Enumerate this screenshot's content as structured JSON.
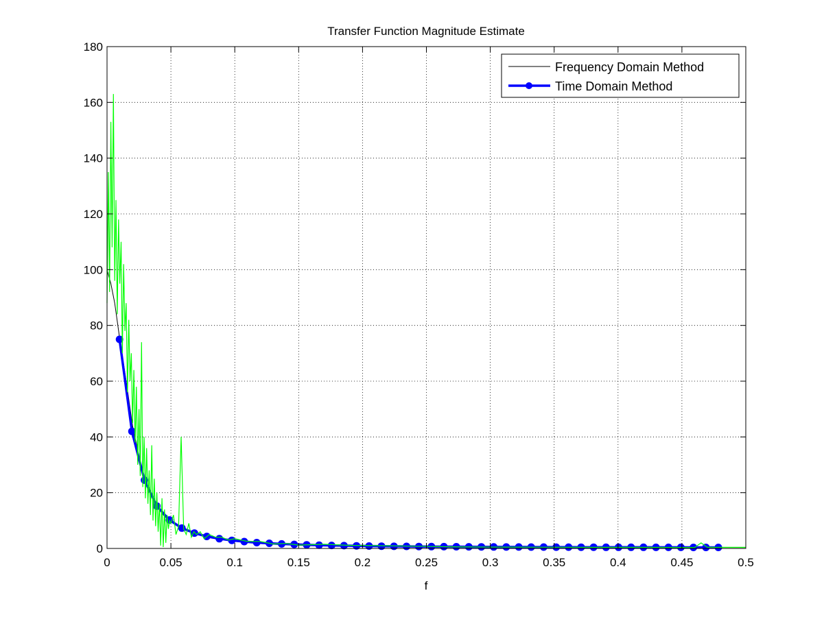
{
  "chart_data": {
    "type": "line",
    "title": "Transfer Function Magnitude Estimate",
    "xlabel": "f",
    "ylabel": "",
    "xlim": [
      0,
      0.5
    ],
    "ylim": [
      0,
      180
    ],
    "xticks": [
      0,
      0.05,
      0.1,
      0.15,
      0.2,
      0.25,
      0.3,
      0.35,
      0.4,
      0.45,
      0.5
    ],
    "xtick_labels": [
      "0",
      "0.05",
      "0.1",
      "0.15",
      "0.2",
      "0.25",
      "0.3",
      "0.35",
      "0.4",
      "0.45",
      "0.5"
    ],
    "yticks": [
      0,
      20,
      40,
      60,
      80,
      100,
      120,
      140,
      160,
      180
    ],
    "ytick_labels": [
      "0",
      "20",
      "40",
      "60",
      "80",
      "100",
      "120",
      "140",
      "160",
      "180"
    ],
    "grid": true,
    "legend_position": "top-right",
    "series": [
      {
        "name": "Frequency Domain Method",
        "color": "#000000",
        "style": "thin-line",
        "x": [
          0,
          0.003,
          0.006,
          0.01,
          0.015,
          0.02,
          0.025,
          0.03,
          0.035,
          0.04,
          0.045,
          0.05,
          0.06,
          0.07,
          0.08,
          0.09,
          0.1,
          0.12,
          0.14,
          0.16,
          0.18,
          0.2,
          0.25,
          0.3,
          0.35,
          0.4,
          0.45,
          0.5
        ],
        "y": [
          100,
          95,
          88,
          75,
          60,
          44,
          33,
          24,
          19,
          14.5,
          11.5,
          9.5,
          7,
          5.4,
          4.3,
          3.5,
          2.9,
          2.1,
          1.6,
          1.3,
          1.1,
          0.95,
          0.7,
          0.55,
          0.48,
          0.42,
          0.38,
          0.35
        ]
      },
      {
        "name": "Time Domain Method",
        "color": "#0000ff",
        "style": "thick-line-circle-markers",
        "x": [
          0.0098,
          0.0195,
          0.0293,
          0.039,
          0.0488,
          0.0586,
          0.0684,
          0.0781,
          0.0879,
          0.0977,
          0.1074,
          0.1172,
          0.127,
          0.1367,
          0.1465,
          0.1563,
          0.166,
          0.1758,
          0.1855,
          0.1953,
          0.2051,
          0.2148,
          0.2246,
          0.2344,
          0.2441,
          0.2539,
          0.2637,
          0.2734,
          0.2832,
          0.293,
          0.3027,
          0.3125,
          0.3223,
          0.332,
          0.3418,
          0.3516,
          0.3613,
          0.3711,
          0.3809,
          0.3906,
          0.4004,
          0.4102,
          0.4199,
          0.4297,
          0.4395,
          0.4492,
          0.459,
          0.4688,
          0.4785
        ],
        "y": [
          75,
          42,
          24.5,
          15.2,
          10.2,
          7.3,
          5.5,
          4.3,
          3.5,
          2.9,
          2.45,
          2.1,
          1.85,
          1.62,
          1.45,
          1.3,
          1.18,
          1.08,
          1.0,
          0.93,
          0.87,
          0.82,
          0.77,
          0.73,
          0.7,
          0.66,
          0.63,
          0.61,
          0.58,
          0.56,
          0.54,
          0.52,
          0.51,
          0.49,
          0.48,
          0.47,
          0.46,
          0.45,
          0.44,
          0.43,
          0.42,
          0.41,
          0.41,
          0.4,
          0.39,
          0.39,
          0.38,
          0.38,
          0.37
        ]
      },
      {
        "name": "",
        "color": "#00ff00",
        "style": "noisy-thin-line",
        "x": [
          0,
          0.001,
          0.002,
          0.003,
          0.004,
          0.005,
          0.006,
          0.007,
          0.008,
          0.009,
          0.01,
          0.011,
          0.012,
          0.013,
          0.014,
          0.015,
          0.016,
          0.017,
          0.018,
          0.019,
          0.02,
          0.021,
          0.022,
          0.023,
          0.024,
          0.025,
          0.026,
          0.027,
          0.028,
          0.029,
          0.03,
          0.031,
          0.032,
          0.033,
          0.034,
          0.035,
          0.036,
          0.037,
          0.038,
          0.039,
          0.04,
          0.041,
          0.042,
          0.043,
          0.044,
          0.045,
          0.046,
          0.047,
          0.048,
          0.049,
          0.05,
          0.052,
          0.054,
          0.056,
          0.058,
          0.06,
          0.062,
          0.064,
          0.066,
          0.068,
          0.07,
          0.073,
          0.076,
          0.08,
          0.085,
          0.09,
          0.095,
          0.1,
          0.11,
          0.12,
          0.13,
          0.14,
          0.15,
          0.17,
          0.19,
          0.21,
          0.24,
          0.27,
          0.3,
          0.34,
          0.38,
          0.42,
          0.46,
          0.465,
          0.47,
          0.5
        ],
        "y": [
          88,
          135,
          92,
          153,
          108,
          163,
          96,
          125,
          84,
          118,
          95,
          110,
          70,
          102,
          78,
          88,
          56,
          82,
          60,
          70,
          45,
          64,
          38,
          58,
          30,
          50,
          26,
          74,
          22,
          40,
          18,
          36,
          16,
          28,
          12,
          37,
          10,
          25,
          8,
          20,
          6,
          16,
          1,
          18,
          0.5,
          14,
          2,
          12,
          7,
          10,
          9,
          12,
          5,
          8,
          40,
          7,
          5,
          9,
          4,
          6,
          5,
          6,
          3.5,
          5,
          4,
          4,
          3,
          3.5,
          2.5,
          2.5,
          1.6,
          1.8,
          1.2,
          1.5,
          1.1,
          1,
          0.8,
          0.6,
          0.5,
          0.45,
          0.4,
          0.4,
          0.35,
          2,
          0.4,
          0.4
        ]
      }
    ]
  }
}
